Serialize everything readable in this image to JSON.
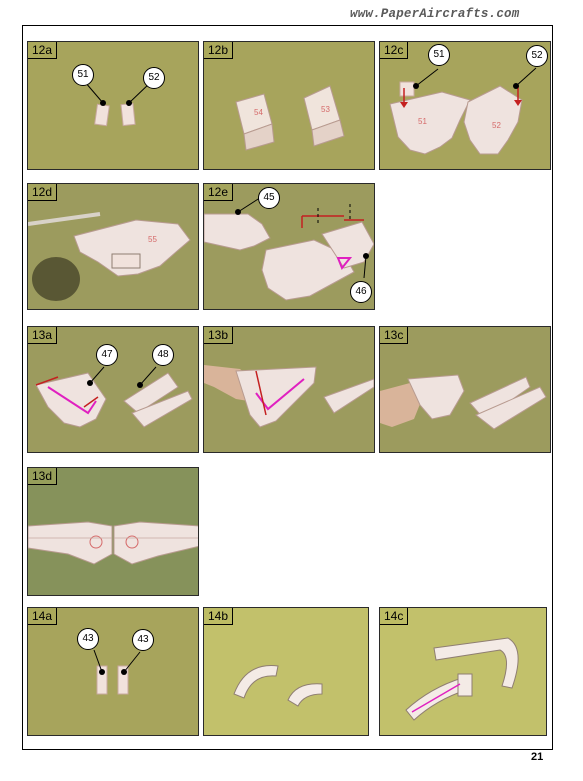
{
  "header": {
    "site_url": "www.PaperAircrafts.com"
  },
  "footer": {
    "page_number": "21"
  },
  "steps": [
    {
      "label": "12a",
      "callouts": [
        "51",
        "52"
      ]
    },
    {
      "label": "12b",
      "callouts": []
    },
    {
      "label": "12c",
      "callouts": [
        "51",
        "52"
      ]
    },
    {
      "label": "12d",
      "callouts": []
    },
    {
      "label": "12e",
      "callouts": [
        "45",
        "46"
      ]
    },
    {
      "label": "13a",
      "callouts": [
        "47",
        "48"
      ]
    },
    {
      "label": "13b",
      "callouts": []
    },
    {
      "label": "13c",
      "callouts": []
    },
    {
      "label": "13d",
      "callouts": []
    },
    {
      "label": "14a",
      "callouts": [
        "43",
        "43"
      ]
    },
    {
      "label": "14b",
      "callouts": []
    },
    {
      "label": "14c",
      "callouts": []
    }
  ],
  "part_markings": [
    "54",
    "53",
    "55",
    "51",
    "52"
  ]
}
